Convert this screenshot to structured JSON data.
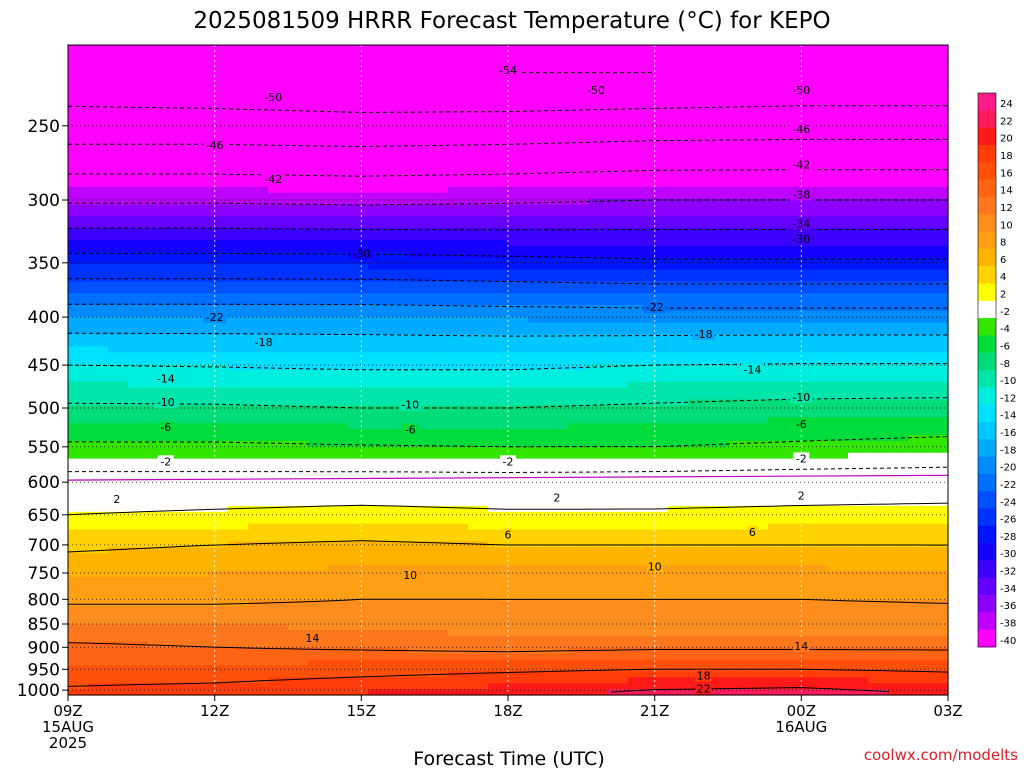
{
  "title": "2025081509 HRRR Forecast Temperature (°C) for KEPO",
  "credit": "coolwx.com/modelts",
  "chart_data": {
    "type": "heatmap",
    "title": "2025081509 HRRR Forecast Temperature (°C) for KEPO",
    "xlabel": "Forecast Time (UTC)",
    "ylabel": "",
    "x_ticks": [
      {
        "hour": 0,
        "lines": [
          "09Z",
          "15AUG",
          "2025"
        ]
      },
      {
        "hour": 3,
        "lines": [
          "12Z"
        ]
      },
      {
        "hour": 6,
        "lines": [
          "15Z"
        ]
      },
      {
        "hour": 9,
        "lines": [
          "18Z"
        ]
      },
      {
        "hour": 12,
        "lines": [
          "21Z"
        ]
      },
      {
        "hour": 15,
        "lines": [
          "00Z",
          "16AUG"
        ]
      },
      {
        "hour": 18,
        "lines": [
          "03Z"
        ]
      }
    ],
    "xlim": [
      0,
      18
    ],
    "y_ticks": [
      250,
      300,
      350,
      400,
      450,
      500,
      550,
      600,
      650,
      700,
      750,
      800,
      850,
      900,
      950,
      1000
    ],
    "ylim": [
      1012,
      205
    ],
    "y_scale": "log",
    "grid": true,
    "colorbar_labels": [
      24,
      22,
      20,
      18,
      16,
      14,
      12,
      10,
      8,
      6,
      4,
      2,
      -2,
      -4,
      -6,
      -8,
      -10,
      -12,
      -14,
      -16,
      -18,
      -20,
      -22,
      -24,
      -26,
      -28,
      -30,
      -32,
      -34,
      -36,
      -38,
      -40
    ],
    "colorbar_colors": [
      "#ff1a8c",
      "#ff1a5a",
      "#ff1a1a",
      "#ff3c0a",
      "#ff500a",
      "#ff6414",
      "#ff781e",
      "#ff8c1e",
      "#ffa014",
      "#ffb400",
      "#ffd200",
      "#ffff00",
      "#ffffff",
      "#32e600",
      "#00dc3c",
      "#00dc78",
      "#00e6aa",
      "#00eedd",
      "#00e1ff",
      "#00c8ff",
      "#00aaff",
      "#008cff",
      "#006eff",
      "#0050ff",
      "#0032ff",
      "#0014ff",
      "#1400ff",
      "#3c00ff",
      "#6400ff",
      "#8c00ff",
      "#be00ff",
      "#ff00ff"
    ],
    "temperature_profile": {
      "pressures_hPa": [
        1005,
        950,
        925,
        900,
        850,
        800,
        750,
        700,
        650,
        600,
        550,
        500,
        450,
        400,
        350,
        300,
        250,
        220
      ],
      "forecast_hours": [
        0,
        3,
        6,
        9,
        12,
        15,
        18
      ],
      "temperatures_C": [
        [
          18.5,
          19.0,
          20.0,
          21.0,
          22.5,
          23.0,
          21.5
        ],
        [
          16.5,
          16.5,
          17.0,
          17.5,
          18.0,
          18.0,
          17.5
        ],
        [
          15.5,
          15.5,
          15.5,
          15.5,
          16.0,
          16.0,
          15.5
        ],
        [
          14.5,
          14.0,
          13.5,
          13.0,
          13.5,
          13.5,
          13.5
        ],
        [
          12.0,
          12.0,
          11.5,
          11.0,
          11.0,
          11.0,
          11.0
        ],
        [
          9.5,
          9.5,
          10.0,
          10.0,
          10.0,
          10.0,
          9.8
        ],
        [
          7.5,
          8.0,
          8.5,
          8.5,
          8.5,
          8.5,
          8.0
        ],
        [
          5.5,
          6.0,
          6.5,
          6.0,
          6.0,
          6.0,
          6.0
        ],
        [
          2.0,
          2.5,
          3.0,
          2.5,
          2.5,
          2.8,
          3.0
        ],
        [
          -0.5,
          -0.5,
          -0.4,
          -0.5,
          -0.3,
          0.0,
          0.2
        ],
        [
          -5.5,
          -5.5,
          -5.8,
          -6.0,
          -6.0,
          -5.5,
          -5.0
        ],
        [
          -9.5,
          -9.6,
          -10.0,
          -10.0,
          -9.5,
          -9.0,
          -8.8
        ],
        [
          -14.0,
          -14.2,
          -14.5,
          -14.5,
          -14.0,
          -13.8,
          -13.8
        ],
        [
          -20.0,
          -20.0,
          -20.0,
          -20.3,
          -20.5,
          -20.5,
          -20.5
        ],
        [
          -28.5,
          -28.5,
          -28.6,
          -29.0,
          -29.5,
          -29.5,
          -29.5
        ],
        [
          -38.5,
          -38.5,
          -38.8,
          -38.5,
          -38.0,
          -38.0,
          -38.0
        ],
        [
          -48.5,
          -48.5,
          -48.8,
          -48.5,
          -48.0,
          -47.8,
          -47.8
        ],
        [
          -52.5,
          -53.0,
          -53.5,
          -54.0,
          -54.0,
          -53.5,
          -53.5
        ]
      ]
    },
    "contour_labels": [
      {
        "value": "-54",
        "hour": 9.0,
        "p": 218
      },
      {
        "value": "-50",
        "hour": 4.2,
        "p": 233
      },
      {
        "value": "-50",
        "hour": 10.8,
        "p": 229
      },
      {
        "value": "-50",
        "hour": 15.0,
        "p": 229
      },
      {
        "value": "-46",
        "hour": 3.0,
        "p": 262
      },
      {
        "value": "-46",
        "hour": 15.0,
        "p": 252
      },
      {
        "value": "-42",
        "hour": 4.2,
        "p": 285
      },
      {
        "value": "-42",
        "hour": 15.0,
        "p": 275
      },
      {
        "value": "-38",
        "hour": 15.0,
        "p": 296
      },
      {
        "value": "-34",
        "hour": 15.0,
        "p": 318
      },
      {
        "value": "-30",
        "hour": 6.0,
        "p": 342
      },
      {
        "value": "-30",
        "hour": 15.0,
        "p": 330
      },
      {
        "value": "-22",
        "hour": 3.0,
        "p": 400
      },
      {
        "value": "-22",
        "hour": 12.0,
        "p": 390
      },
      {
        "value": "-18",
        "hour": 4.0,
        "p": 425
      },
      {
        "value": "-18",
        "hour": 13.0,
        "p": 417
      },
      {
        "value": "-14",
        "hour": 2.0,
        "p": 465
      },
      {
        "value": "-14",
        "hour": 14.0,
        "p": 455
      },
      {
        "value": "-10",
        "hour": 2.0,
        "p": 493
      },
      {
        "value": "-10",
        "hour": 7.0,
        "p": 496
      },
      {
        "value": "-10",
        "hour": 15.0,
        "p": 487
      },
      {
        "value": "-6",
        "hour": 2.0,
        "p": 524
      },
      {
        "value": "-6",
        "hour": 7.0,
        "p": 527
      },
      {
        "value": "-6",
        "hour": 15.0,
        "p": 520
      },
      {
        "value": "-2",
        "hour": 2.0,
        "p": 570
      },
      {
        "value": "-2",
        "hour": 9.0,
        "p": 570
      },
      {
        "value": "-2",
        "hour": 15.0,
        "p": 566
      },
      {
        "value": "2",
        "hour": 1.0,
        "p": 625
      },
      {
        "value": "2",
        "hour": 10.0,
        "p": 623
      },
      {
        "value": "2",
        "hour": 15.0,
        "p": 620
      },
      {
        "value": "6",
        "hour": 9.0,
        "p": 682
      },
      {
        "value": "6",
        "hour": 14.0,
        "p": 678
      },
      {
        "value": "10",
        "hour": 7.0,
        "p": 754
      },
      {
        "value": "10",
        "hour": 12.0,
        "p": 738
      },
      {
        "value": "14",
        "hour": 5.0,
        "p": 880
      },
      {
        "value": "14",
        "hour": 15.0,
        "p": 897
      },
      {
        "value": "18",
        "hour": 13.0,
        "p": 965
      },
      {
        "value": "22",
        "hour": 13.0,
        "p": 996
      }
    ]
  }
}
